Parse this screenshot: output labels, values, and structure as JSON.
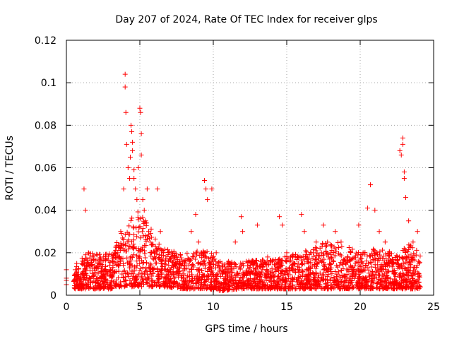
{
  "chart_data": {
    "type": "scatter",
    "title": "Day 207 of 2024, Rate Of TEC Index for receiver glps",
    "xlabel": "GPS time / hours",
    "ylabel": "ROTI / TECUs",
    "xlim": [
      0,
      25
    ],
    "ylim": [
      0,
      0.12
    ],
    "x_ticks": [
      0,
      5,
      10,
      15,
      20,
      25
    ],
    "x_tick_labels": [
      "0",
      "5",
      "10",
      "15",
      "20",
      "25"
    ],
    "y_ticks": [
      0,
      0.02,
      0.04,
      0.06,
      0.08,
      0.1,
      0.12
    ],
    "y_tick_labels": [
      "0",
      "0.02",
      "0.04",
      "0.06",
      "0.08",
      "0.1",
      "0.12"
    ],
    "grid": true,
    "marker": "+",
    "series": [
      {
        "name": "ROTI",
        "color": "#ff0000",
        "x": [
          0.0,
          0.0,
          0.0,
          0.0,
          0.6,
          1.2,
          1.3,
          1.5,
          2.2,
          2.8,
          3.5,
          3.7,
          3.9,
          4.0,
          4.0,
          4.05,
          4.1,
          4.2,
          4.3,
          4.35,
          4.4,
          4.45,
          4.5,
          4.5,
          4.6,
          4.6,
          4.7,
          4.8,
          4.9,
          5.0,
          5.05,
          5.1,
          5.1,
          5.2,
          5.3,
          5.4,
          5.5,
          5.6,
          5.7,
          5.8,
          6.0,
          6.2,
          6.4,
          6.6,
          7.0,
          7.5,
          8.0,
          8.5,
          8.8,
          9.0,
          9.2,
          9.4,
          9.5,
          9.6,
          9.9,
          10.2,
          10.6,
          11.0,
          11.5,
          11.9,
          12.0,
          12.5,
          13.0,
          13.7,
          14.2,
          14.5,
          14.7,
          15.0,
          15.5,
          16.0,
          16.2,
          16.8,
          17.0,
          17.5,
          18.0,
          18.3,
          18.7,
          19.0,
          19.5,
          19.9,
          20.2,
          20.5,
          20.7,
          21.0,
          21.3,
          21.7,
          22.0,
          22.3,
          22.7,
          22.8,
          22.9,
          22.9,
          23.0,
          23.0,
          23.1,
          23.3,
          23.6,
          23.9,
          24.0,
          24.0
        ],
        "y": [
          0.012,
          0.008,
          0.007,
          0.005,
          0.012,
          0.05,
          0.04,
          0.02,
          0.015,
          0.01,
          0.02,
          0.03,
          0.05,
          0.104,
          0.098,
          0.086,
          0.071,
          0.06,
          0.055,
          0.065,
          0.08,
          0.077,
          0.072,
          0.068,
          0.059,
          0.055,
          0.05,
          0.045,
          0.06,
          0.088,
          0.086,
          0.076,
          0.066,
          0.045,
          0.04,
          0.035,
          0.05,
          0.03,
          0.025,
          0.02,
          0.018,
          0.05,
          0.03,
          0.02,
          0.012,
          0.015,
          0.01,
          0.03,
          0.038,
          0.025,
          0.02,
          0.054,
          0.05,
          0.045,
          0.05,
          0.02,
          0.01,
          0.015,
          0.025,
          0.037,
          0.03,
          0.01,
          0.033,
          0.018,
          0.012,
          0.037,
          0.033,
          0.02,
          0.015,
          0.038,
          0.03,
          0.02,
          0.025,
          0.033,
          0.02,
          0.03,
          0.025,
          0.015,
          0.012,
          0.033,
          0.02,
          0.041,
          0.052,
          0.04,
          0.03,
          0.025,
          0.02,
          0.01,
          0.068,
          0.066,
          0.074,
          0.071,
          0.058,
          0.055,
          0.046,
          0.035,
          0.025,
          0.03,
          0.01,
          0.006
        ]
      }
    ],
    "dense_band": {
      "description": "dense cloud of points",
      "x_range": [
        0.5,
        24.1
      ],
      "profile_hours": [
        0.5,
        1.5,
        3.0,
        3.8,
        4.3,
        4.8,
        5.5,
        6.5,
        8.0,
        9.5,
        10.5,
        12.0,
        14.0,
        16.0,
        17.5,
        18.5,
        20.0,
        21.0,
        22.5,
        23.5,
        24.1
      ],
      "profile_low": [
        0.003,
        0.003,
        0.003,
        0.004,
        0.004,
        0.004,
        0.004,
        0.004,
        0.003,
        0.003,
        0.002,
        0.003,
        0.003,
        0.003,
        0.003,
        0.003,
        0.003,
        0.003,
        0.003,
        0.003,
        0.003
      ],
      "profile_high": [
        0.015,
        0.02,
        0.02,
        0.03,
        0.035,
        0.04,
        0.035,
        0.022,
        0.02,
        0.022,
        0.016,
        0.016,
        0.017,
        0.02,
        0.025,
        0.025,
        0.02,
        0.022,
        0.02,
        0.025,
        0.02
      ]
    }
  }
}
